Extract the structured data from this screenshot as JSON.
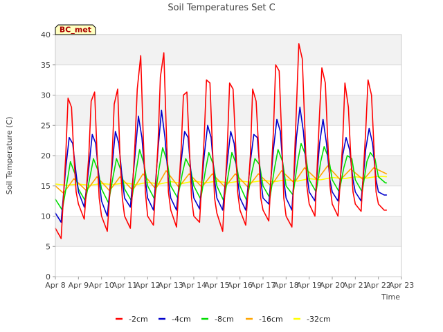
{
  "chart_data": {
    "type": "line",
    "title": "Soil Temperatures Set C",
    "xlabel": "Time",
    "ylabel": "Soil Temperature (C)",
    "badge": "BC_met",
    "x_ticks": [
      "Apr 8",
      "Apr 9",
      "Apr 10",
      "Apr 11",
      "Apr 12",
      "Apr 13",
      "Apr 14",
      "Apr 15",
      "Apr 16",
      "Apr 17",
      "Apr 18",
      "Apr 19",
      "Apr 20",
      "Apr 21",
      "Apr 22",
      "Apr 23"
    ],
    "xlim": [
      8,
      23
    ],
    "ylim": [
      0,
      40
    ],
    "y_ticks": [
      0,
      5,
      10,
      15,
      20,
      25,
      30,
      35,
      40
    ],
    "grid": "horizontal bands",
    "legend_position": "bottom-center",
    "series": [
      {
        "name": "-2cm",
        "color": "#ff0000",
        "x": [
          8.0,
          8.25,
          8.45,
          8.55,
          8.7,
          8.8,
          8.9,
          9.0,
          9.25,
          9.45,
          9.55,
          9.7,
          9.8,
          9.9,
          10.0,
          10.25,
          10.45,
          10.55,
          10.7,
          10.8,
          10.9,
          11.0,
          11.25,
          11.45,
          11.55,
          11.7,
          11.8,
          11.9,
          12.0,
          12.25,
          12.45,
          12.55,
          12.7,
          12.8,
          12.9,
          13.0,
          13.25,
          13.45,
          13.55,
          13.7,
          13.8,
          13.9,
          14.0,
          14.25,
          14.45,
          14.55,
          14.7,
          14.8,
          14.9,
          15.0,
          15.25,
          15.45,
          15.55,
          15.7,
          15.8,
          15.9,
          16.0,
          16.25,
          16.45,
          16.55,
          16.7,
          16.8,
          16.9,
          17.0,
          17.25,
          17.45,
          17.55,
          17.7,
          17.8,
          17.9,
          18.0,
          18.25,
          18.45,
          18.55,
          18.7,
          18.8,
          18.9,
          19.0,
          19.25,
          19.45,
          19.55,
          19.7,
          19.8,
          19.9,
          20.0,
          20.25,
          20.45,
          20.55,
          20.7,
          20.8,
          20.9,
          21.0,
          21.25,
          21.45,
          21.55,
          21.7,
          21.8,
          21.9,
          22.0,
          22.25,
          22.35
        ],
        "values": [
          8.0,
          6.3,
          20.0,
          29.5,
          28.0,
          20.0,
          14.0,
          12.0,
          9.5,
          20.0,
          29.0,
          30.5,
          21.0,
          13.0,
          10.0,
          7.5,
          19.0,
          28.5,
          31.0,
          20.0,
          13.0,
          10.0,
          8.0,
          22.0,
          31.0,
          36.5,
          24.0,
          14.0,
          10.0,
          8.5,
          22.0,
          33.0,
          37.0,
          25.0,
          14.0,
          11.0,
          8.2,
          21.0,
          30.0,
          30.5,
          22.0,
          13.0,
          10.0,
          9.0,
          23.0,
          32.5,
          32.0,
          22.0,
          13.0,
          10.5,
          7.5,
          21.0,
          32.0,
          31.0,
          23.0,
          14.0,
          11.0,
          8.5,
          20.0,
          31.0,
          29.0,
          22.0,
          13.0,
          11.0,
          9.2,
          24.0,
          35.0,
          34.0,
          24.0,
          13.0,
          10.0,
          8.2,
          28.0,
          38.5,
          36.0,
          26.0,
          15.0,
          12.0,
          10.0,
          27.0,
          34.5,
          32.0,
          23.0,
          15.0,
          12.0,
          10.0,
          22.0,
          32.0,
          28.0,
          20.0,
          14.0,
          12.0,
          10.8,
          24.0,
          32.5,
          30.0,
          22.0,
          14.0,
          12.0,
          11.0,
          11.0
        ]
      },
      {
        "name": "-4cm",
        "color": "#0000cc",
        "x": [
          8.0,
          8.25,
          8.45,
          8.6,
          8.75,
          8.9,
          9.0,
          9.25,
          9.45,
          9.6,
          9.75,
          9.9,
          10.0,
          10.25,
          10.45,
          10.6,
          10.75,
          10.9,
          11.0,
          11.25,
          11.45,
          11.6,
          11.75,
          11.9,
          12.0,
          12.25,
          12.45,
          12.6,
          12.75,
          12.9,
          13.0,
          13.25,
          13.45,
          13.6,
          13.75,
          13.9,
          14.0,
          14.25,
          14.45,
          14.6,
          14.75,
          14.9,
          15.0,
          15.25,
          15.45,
          15.6,
          15.75,
          15.9,
          16.0,
          16.25,
          16.45,
          16.6,
          16.75,
          16.9,
          17.0,
          17.25,
          17.45,
          17.6,
          17.75,
          17.9,
          18.0,
          18.25,
          18.45,
          18.6,
          18.75,
          18.9,
          19.0,
          19.25,
          19.45,
          19.6,
          19.75,
          19.9,
          20.0,
          20.25,
          20.45,
          20.6,
          20.75,
          20.9,
          21.0,
          21.25,
          21.45,
          21.6,
          21.75,
          21.9,
          22.0,
          22.25,
          22.35
        ],
        "values": [
          10.5,
          9.0,
          18.0,
          23.0,
          22.0,
          17.0,
          14.0,
          11.5,
          18.0,
          23.5,
          22.0,
          16.0,
          12.5,
          10.0,
          18.0,
          24.0,
          22.0,
          16.0,
          13.0,
          11.5,
          20.0,
          26.5,
          23.0,
          16.0,
          13.0,
          11.0,
          21.0,
          27.5,
          23.0,
          16.0,
          13.0,
          11.0,
          19.0,
          24.0,
          23.0,
          16.0,
          13.0,
          11.2,
          20.0,
          25.0,
          23.0,
          16.0,
          13.0,
          11.0,
          19.0,
          24.0,
          22.0,
          16.0,
          13.0,
          11.0,
          19.0,
          23.5,
          23.0,
          16.0,
          13.0,
          12.0,
          21.0,
          26.0,
          24.0,
          16.0,
          13.0,
          11.0,
          23.0,
          28.0,
          24.0,
          17.0,
          14.0,
          12.5,
          22.0,
          26.0,
          22.0,
          16.0,
          14.0,
          12.5,
          20.0,
          23.0,
          21.0,
          16.0,
          14.0,
          12.5,
          21.0,
          24.5,
          22.0,
          16.0,
          14.0,
          13.5,
          13.5
        ]
      },
      {
        "name": "-8cm",
        "color": "#00dd00",
        "x": [
          8.0,
          8.3,
          8.5,
          8.65,
          8.85,
          9.0,
          9.3,
          9.5,
          9.65,
          9.85,
          10.0,
          10.3,
          10.5,
          10.65,
          10.85,
          11.0,
          11.3,
          11.5,
          11.65,
          11.85,
          12.0,
          12.3,
          12.5,
          12.65,
          12.85,
          13.0,
          13.3,
          13.5,
          13.65,
          13.85,
          14.0,
          14.3,
          14.5,
          14.65,
          14.85,
          15.0,
          15.3,
          15.5,
          15.65,
          15.85,
          16.0,
          16.3,
          16.5,
          16.65,
          16.85,
          17.0,
          17.3,
          17.5,
          17.65,
          17.85,
          18.0,
          18.3,
          18.5,
          18.65,
          18.85,
          19.0,
          19.3,
          19.5,
          19.65,
          19.85,
          20.0,
          20.3,
          20.5,
          20.65,
          20.85,
          21.0,
          21.3,
          21.5,
          21.65,
          21.85,
          22.0,
          22.3,
          22.35
        ],
        "values": [
          12.8,
          11.0,
          15.5,
          19.0,
          17.0,
          14.5,
          12.5,
          16.5,
          19.5,
          17.5,
          14.5,
          12.2,
          16.5,
          19.5,
          17.5,
          14.5,
          12.5,
          17.5,
          21.0,
          18.5,
          15.0,
          12.8,
          18.0,
          21.3,
          19.0,
          15.0,
          13.0,
          17.0,
          19.5,
          18.0,
          15.0,
          12.8,
          17.5,
          20.5,
          18.5,
          15.0,
          12.5,
          17.0,
          20.5,
          18.5,
          15.0,
          12.5,
          17.0,
          19.5,
          18.5,
          15.0,
          13.0,
          18.0,
          21.0,
          19.0,
          15.0,
          13.5,
          19.0,
          22.0,
          20.0,
          16.0,
          14.0,
          19.0,
          21.5,
          19.5,
          16.0,
          14.0,
          18.0,
          20.0,
          19.5,
          16.0,
          14.0,
          19.0,
          20.5,
          19.5,
          16.5,
          15.5,
          15.5
        ]
      },
      {
        "name": "-16cm",
        "color": "#ffa500",
        "x": [
          8.0,
          8.35,
          8.8,
          9.35,
          9.8,
          10.35,
          10.8,
          11.35,
          11.8,
          12.35,
          12.8,
          13.35,
          13.8,
          14.35,
          14.8,
          15.35,
          15.8,
          16.35,
          16.8,
          17.35,
          17.8,
          18.35,
          18.8,
          19.35,
          19.8,
          20.35,
          20.8,
          21.35,
          21.8,
          22.35
        ],
        "values": [
          15.0,
          13.8,
          16.2,
          14.2,
          16.5,
          14.2,
          16.5,
          14.3,
          17.0,
          14.5,
          17.5,
          14.8,
          17.0,
          14.8,
          17.0,
          14.8,
          17.0,
          14.8,
          17.0,
          15.0,
          17.5,
          15.5,
          18.0,
          16.0,
          18.3,
          16.0,
          17.8,
          16.0,
          18.0,
          17.0
        ]
      },
      {
        "name": "-32cm",
        "color": "#ffff00",
        "x": [
          8.0,
          8.5,
          9.0,
          9.5,
          10.0,
          10.5,
          11.0,
          11.5,
          12.0,
          12.5,
          13.0,
          13.5,
          14.0,
          14.5,
          15.0,
          15.5,
          16.0,
          16.5,
          17.0,
          17.5,
          18.0,
          18.5,
          19.0,
          19.5,
          20.0,
          20.5,
          21.0,
          21.5,
          22.0,
          22.35
        ],
        "values": [
          15.3,
          15.1,
          15.3,
          15.1,
          15.4,
          15.2,
          15.5,
          15.2,
          15.6,
          15.3,
          15.7,
          15.4,
          15.8,
          15.5,
          15.8,
          15.5,
          15.8,
          15.6,
          15.9,
          15.7,
          16.0,
          15.8,
          16.2,
          16.0,
          16.4,
          16.2,
          16.5,
          16.3,
          16.6,
          16.5
        ]
      }
    ]
  }
}
